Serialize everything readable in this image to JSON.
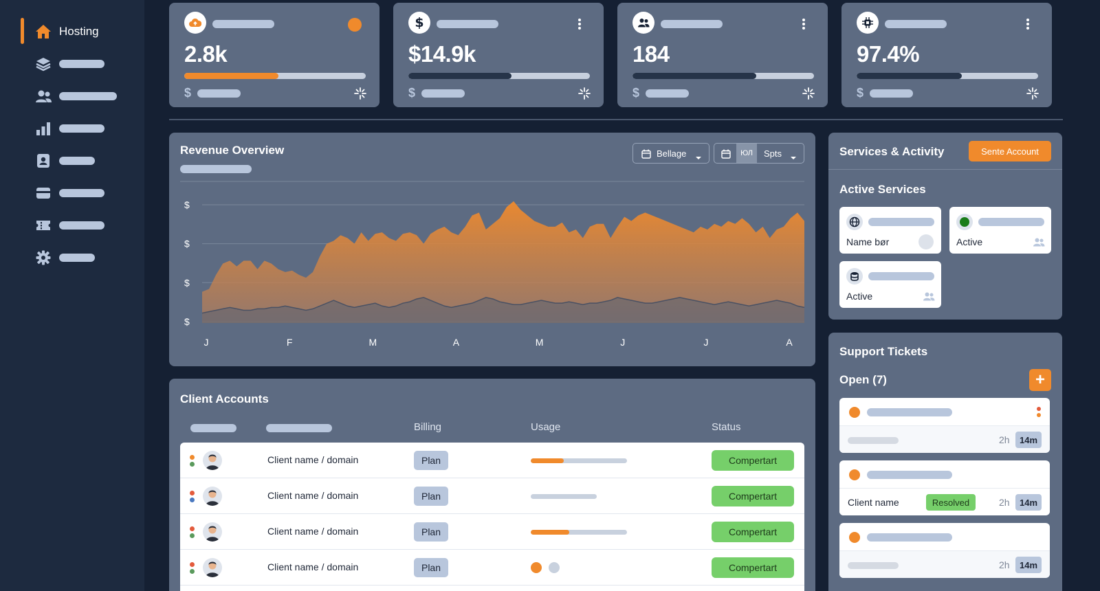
{
  "sidebar": {
    "active_item": {
      "label": "Hosting",
      "icon": "home-icon"
    },
    "items": [
      {
        "icon": "layers-icon"
      },
      {
        "icon": "users-icon"
      },
      {
        "icon": "bar-chart-icon"
      },
      {
        "icon": "contact-card-icon"
      },
      {
        "icon": "credit-card-icon"
      },
      {
        "icon": "ticket-icon"
      },
      {
        "icon": "gear-icon"
      }
    ]
  },
  "kpis": [
    {
      "value": "2.8k",
      "icon": "cloud-upload-icon",
      "progress": 0.52,
      "fill_color": "#f08a2c",
      "currency_symbol": "$"
    },
    {
      "value": "$14.9k",
      "icon": "dollar-icon",
      "progress": 0.57,
      "fill_color": "#263449",
      "currency_symbol": "$"
    },
    {
      "value": "184",
      "icon": "users-icon",
      "progress": 0.68,
      "fill_color": "#263449",
      "currency_symbol": "$"
    },
    {
      "value": "97.4%",
      "icon": "chip-icon",
      "progress": 0.58,
      "fill_color": "#263449",
      "currency_symbol": "$"
    }
  ],
  "revenue": {
    "title": "Revenue Overview",
    "date_dropdown": "Bellage",
    "toggle_label": "Spts",
    "segment_label": "ЮЛ",
    "chart_data": {
      "type": "area",
      "title": "Revenue Overview",
      "x_tick_labels": [
        "J",
        "F",
        "M",
        "A",
        "M",
        "J",
        "J",
        "A"
      ],
      "y_tick_labels": [
        "$",
        "$",
        "$",
        "$"
      ],
      "ylim": [
        0,
        100
      ],
      "grid": true,
      "series": [
        {
          "color": "#f08a2c",
          "values": [
            22,
            24,
            34,
            42,
            44,
            40,
            44,
            44,
            38,
            44,
            42,
            38,
            36,
            37,
            34,
            32,
            36,
            47,
            56,
            58,
            62,
            60,
            56,
            64,
            58,
            63,
            64,
            60,
            58,
            63,
            64,
            62,
            56,
            63,
            66,
            68,
            64,
            62,
            68,
            76,
            78,
            66,
            70,
            74,
            82,
            86,
            80,
            76,
            72,
            70,
            68,
            68,
            71,
            64,
            66,
            60,
            68,
            70,
            70,
            60,
            68,
            75,
            72,
            76,
            78,
            76,
            74,
            72,
            70,
            68,
            66,
            64,
            68,
            66,
            70,
            68,
            72,
            70,
            74,
            70,
            64,
            68,
            60,
            66,
            68,
            74,
            78,
            72
          ]
        },
        {
          "color": "#5a6273",
          "values": [
            7,
            8,
            9,
            10,
            11,
            10,
            9,
            9,
            10,
            10,
            11,
            11,
            12,
            11,
            10,
            9,
            10,
            12,
            14,
            16,
            14,
            12,
            11,
            12,
            13,
            14,
            12,
            11,
            12,
            14,
            15,
            17,
            18,
            16,
            14,
            12,
            11,
            12,
            13,
            14,
            16,
            18,
            17,
            15,
            14,
            13,
            13,
            14,
            15,
            16,
            15,
            14,
            14,
            15,
            14,
            13,
            14,
            14,
            15,
            16,
            18,
            17,
            16,
            15,
            14,
            14,
            15,
            16,
            17,
            18,
            17,
            16,
            15,
            14,
            13,
            14,
            15,
            14,
            13,
            12,
            13,
            14,
            15,
            16,
            15,
            14,
            12,
            11
          ]
        }
      ]
    }
  },
  "clients": {
    "title": "Client Accounts",
    "columns": {
      "billing": "Billing",
      "usage": "Usage",
      "status": "Status"
    },
    "rows": [
      {
        "name": "Client name / domain",
        "plan": "Plan",
        "usage_type": "bar",
        "usage": 0.34,
        "usage_track_width": 140,
        "status": "Compertart",
        "dot_top": "#f08a2c",
        "dot_bottom": "#5a9a5c"
      },
      {
        "name": "Client name / domain",
        "plan": "Plan",
        "usage_type": "bar",
        "usage": 0,
        "usage_track_width": 96,
        "status": "Compertart",
        "dot_top": "#e35b3c",
        "dot_bottom": "#4a79c0"
      },
      {
        "name": "Client name / domain",
        "plan": "Plan",
        "usage_type": "bar",
        "usage": 0.4,
        "usage_track_width": 140,
        "status": "Compertart",
        "dot_top": "#e35b3c",
        "dot_bottom": "#5a9a5c"
      },
      {
        "name": "Client name / domain",
        "plan": "Plan",
        "usage_type": "dots",
        "usage": 0,
        "usage_track_width": 0,
        "status": "Compertart",
        "dot_top": "#e35b3c",
        "dot_bottom": "#5a9a5c"
      }
    ]
  },
  "services": {
    "title": "Services & Activity",
    "action_button": "Sente Account",
    "active_services_title": "Active Services",
    "cards": [
      {
        "icon": "globe-icon",
        "label": "Name bør",
        "trailing": "toggle"
      },
      {
        "icon": "status-online-icon",
        "label": "Active",
        "trailing": "users"
      },
      {
        "icon": "database-icon",
        "label": "Active",
        "trailing": "users"
      }
    ]
  },
  "support": {
    "title": "Support Tickets",
    "open_label": "Open (7)",
    "add_button": "+",
    "tickets": [
      {
        "client_name": "",
        "badge": "",
        "age": "2h",
        "duration": "14m",
        "priority_flag": true
      },
      {
        "client_name": "Client name",
        "badge": "Resolved",
        "age": "2h",
        "duration": "14m",
        "priority_flag": false
      },
      {
        "client_name": "",
        "badge": "",
        "age": "2h",
        "duration": "14m",
        "priority_flag": false
      }
    ]
  },
  "colors": {
    "accent": "#f08a2c",
    "panel": "#5d6b82",
    "background": "#152033",
    "sidebar": "#1d2a3f",
    "success": "#76cf6a"
  }
}
